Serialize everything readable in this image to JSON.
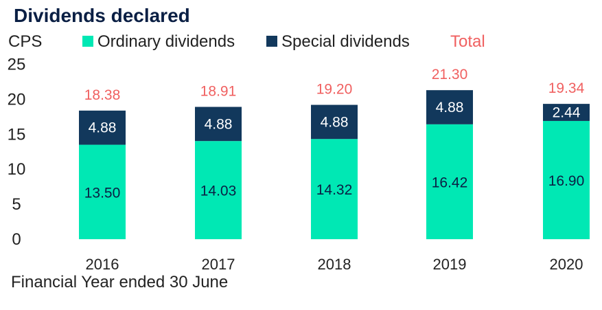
{
  "chart_data": {
    "type": "bar",
    "stacked": true,
    "title": "Dividends declared",
    "ylabel": "CPS",
    "xlabel": "Financial Year ended 30 June",
    "ylim": [
      0,
      25
    ],
    "yticks": [
      0,
      5,
      10,
      15,
      20,
      25
    ],
    "categories": [
      "2016",
      "2017",
      "2018",
      "2019",
      "2020"
    ],
    "series": [
      {
        "name": "Ordinary dividends",
        "values": [
          13.5,
          14.03,
          14.32,
          16.42,
          16.9
        ],
        "labels": [
          "13.50",
          "14.03",
          "14.32",
          "16.42",
          "16.90"
        ]
      },
      {
        "name": "Special dividends",
        "values": [
          4.88,
          4.88,
          4.88,
          4.88,
          2.44
        ],
        "labels": [
          "4.88",
          "4.88",
          "4.88",
          "4.88",
          "2.44"
        ]
      }
    ],
    "totals": {
      "name": "Total",
      "values": [
        18.38,
        18.91,
        19.2,
        21.3,
        19.34
      ],
      "labels": [
        "18.38",
        "18.91",
        "19.20",
        "21.30",
        "19.34"
      ]
    },
    "legend_placement": "top",
    "grid": false
  },
  "colors": {
    "title": "#0a1f44",
    "ordinary": "#00e8b4",
    "special": "#12385c",
    "total": "#f06060",
    "text": "#222222",
    "bar_text": "#0a1f44",
    "special_text": "#ffffff"
  }
}
